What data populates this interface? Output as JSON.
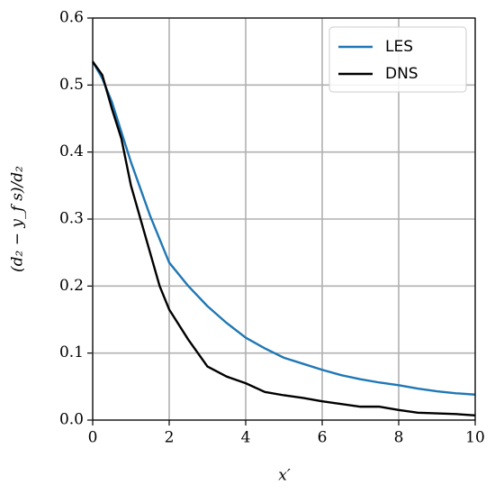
{
  "chart_data": {
    "type": "line",
    "x_label": "x′",
    "y_label": "(d₂ − y_f s)/d₂",
    "x": [
      0,
      0.25,
      0.5,
      0.75,
      1,
      1.25,
      1.5,
      1.75,
      2,
      2.5,
      3,
      3.5,
      4,
      4.5,
      5,
      5.5,
      6,
      6.5,
      7,
      7.5,
      8,
      8.5,
      9,
      9.5,
      10
    ],
    "series": [
      {
        "name": "LES",
        "color": "#1f77b4",
        "values": [
          0.535,
          0.51,
          0.475,
          0.43,
          0.385,
          0.345,
          0.305,
          0.27,
          0.235,
          0.2,
          0.17,
          0.145,
          0.123,
          0.107,
          0.093,
          0.084,
          0.075,
          0.067,
          0.061,
          0.056,
          0.052,
          0.047,
          0.043,
          0.04,
          0.038
        ]
      },
      {
        "name": "DNS",
        "color": "#000000",
        "values": [
          0.535,
          0.515,
          0.465,
          0.42,
          0.35,
          0.3,
          0.25,
          0.2,
          0.165,
          0.12,
          0.08,
          0.065,
          0.055,
          0.042,
          0.037,
          0.033,
          0.028,
          0.024,
          0.02,
          0.02,
          0.015,
          0.011,
          0.01,
          0.009,
          0.007
        ]
      }
    ],
    "xlim": [
      0,
      10
    ],
    "xticks": [
      0,
      2,
      4,
      6,
      8,
      10
    ],
    "ylim": [
      0,
      0.6
    ],
    "yticks": [
      {
        "value": 0,
        "label": "0.0"
      },
      0.1,
      0.2,
      0.3,
      0.4,
      0.5,
      0.6
    ],
    "grid": true,
    "legend": "upper right"
  }
}
